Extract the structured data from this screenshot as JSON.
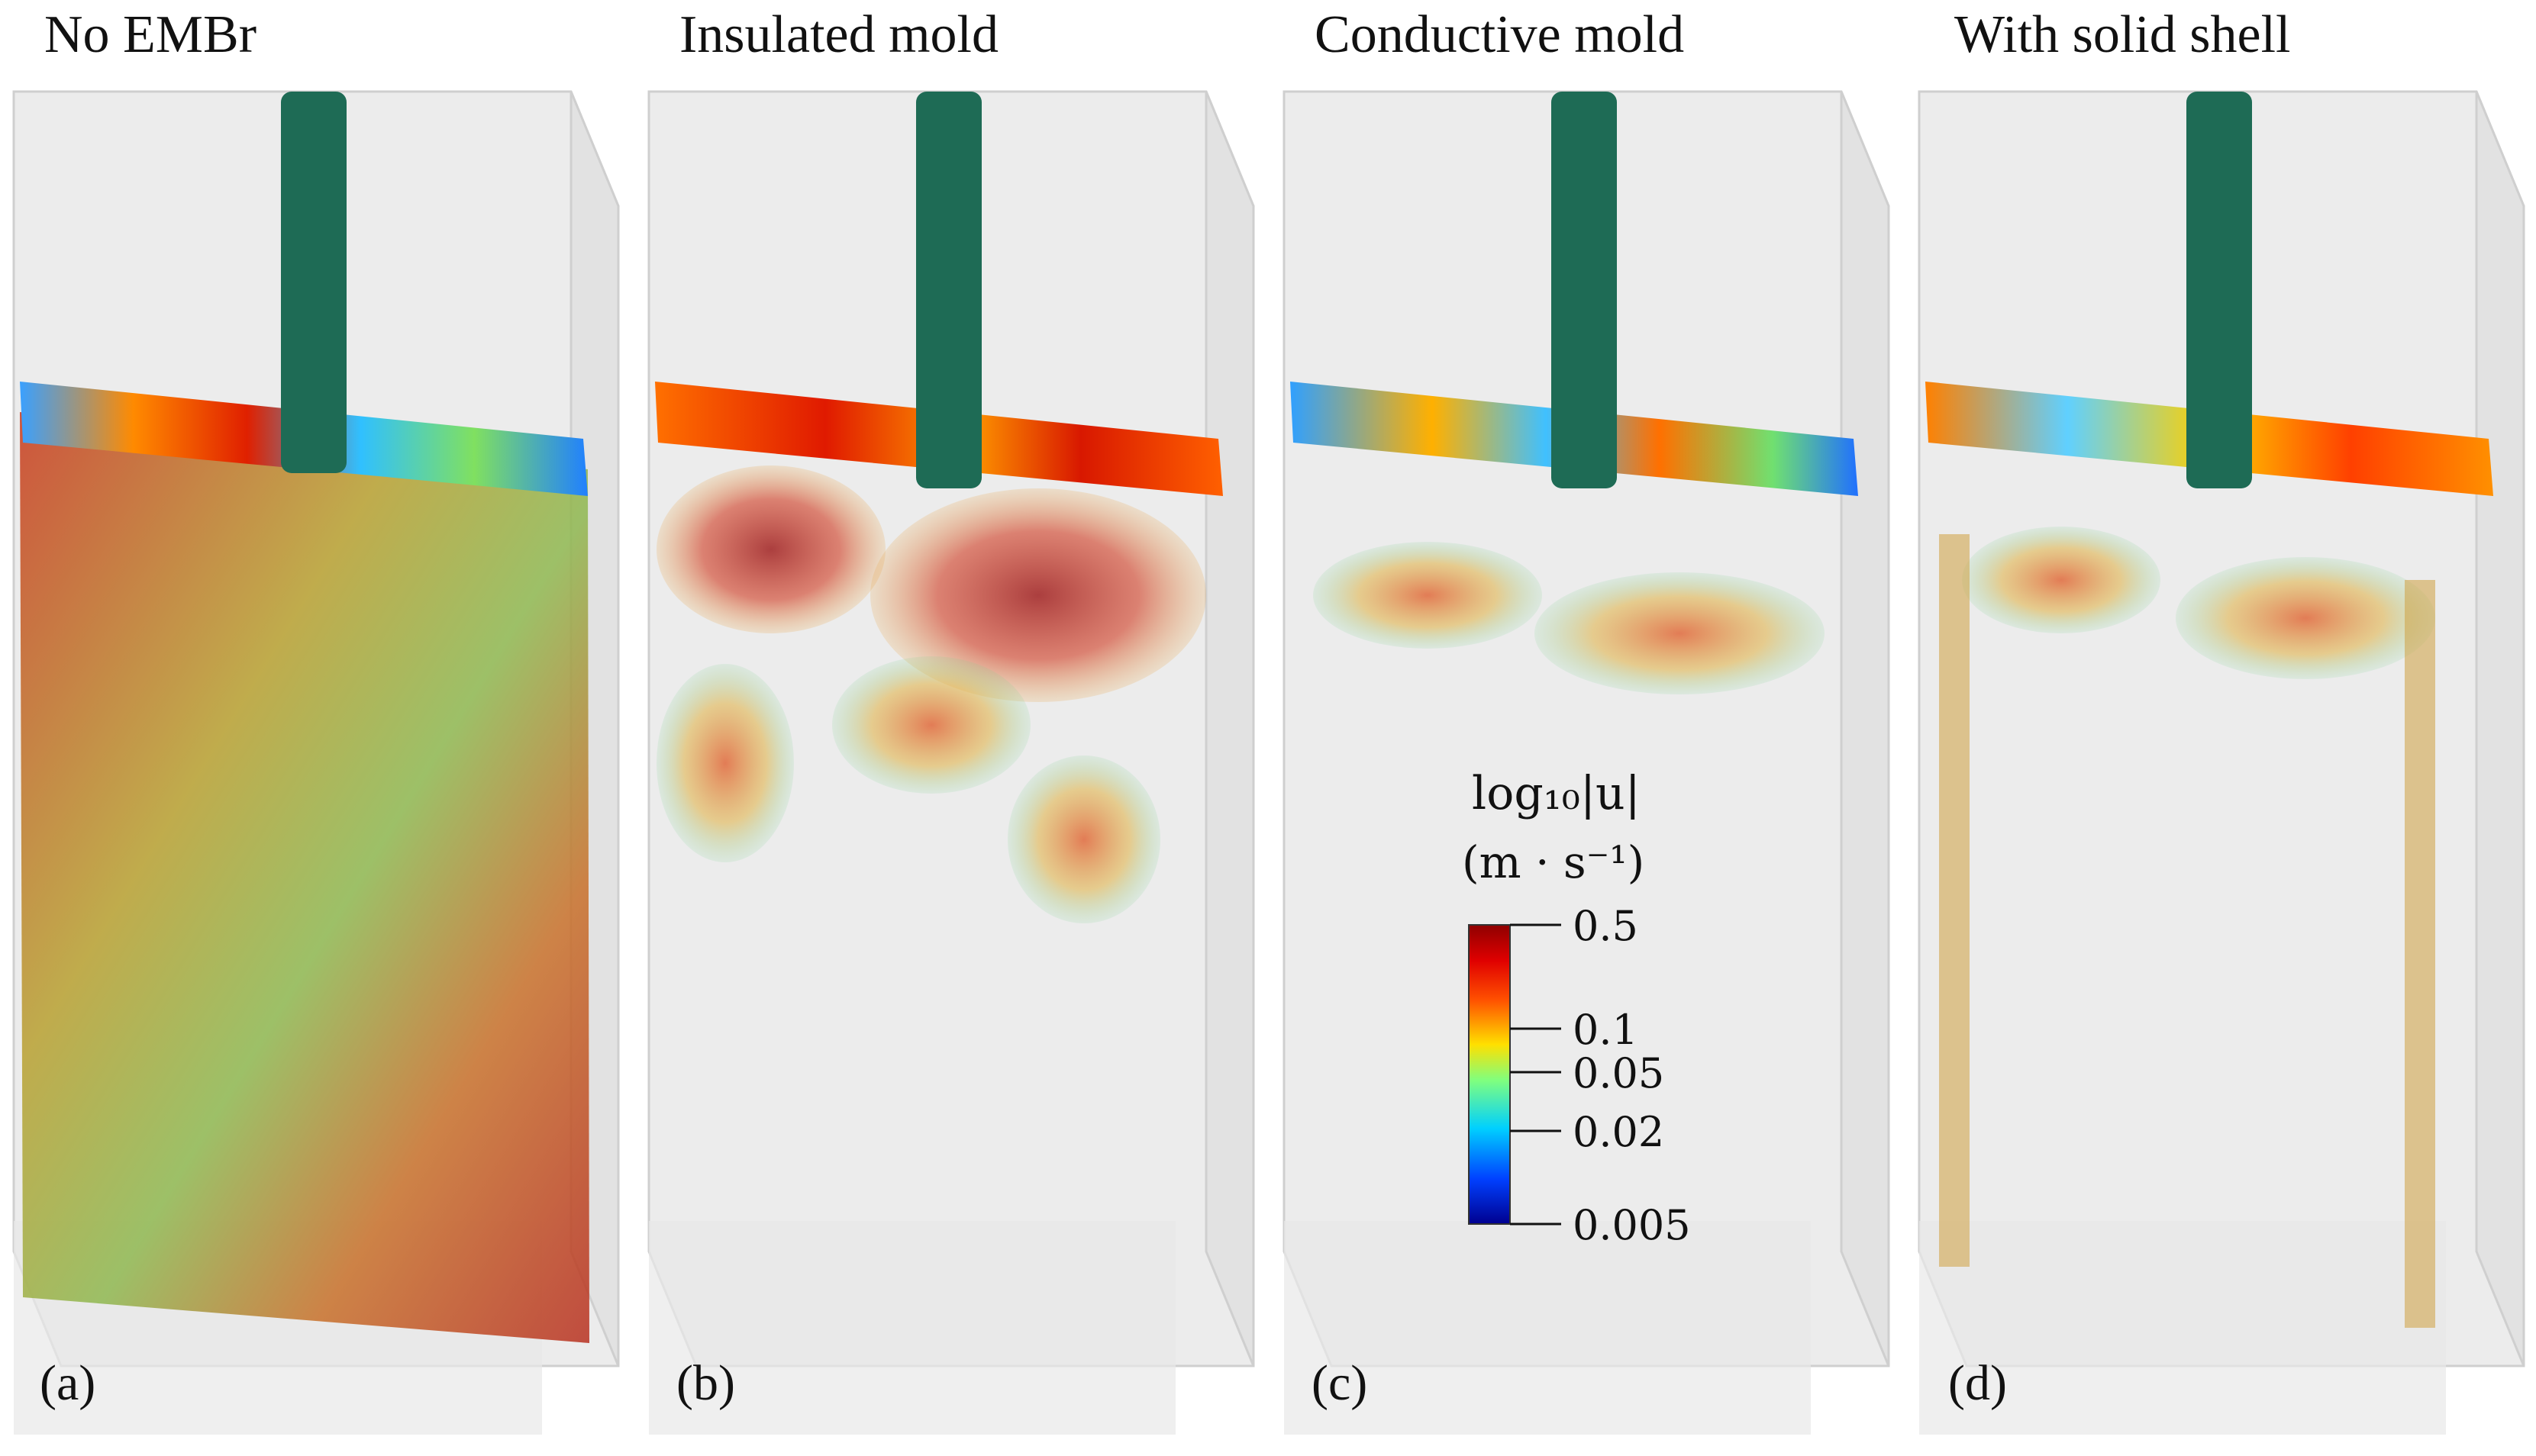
{
  "figure": {
    "panels": [
      {
        "title": "No EMBr",
        "label": "(a)"
      },
      {
        "title": "Insulated mold",
        "label": "(b)"
      },
      {
        "title": "Conductive mold",
        "label": "(c)"
      },
      {
        "title": "With solid shell",
        "label": "(d)"
      }
    ],
    "colorbar": {
      "quantity": "log₁₀|u|",
      "unit": "(m · s⁻¹)",
      "ticks": [
        "0.5",
        "0.1",
        "0.05",
        "0.02",
        "0.005"
      ],
      "range": [
        0.005,
        0.5
      ],
      "scale": "log",
      "colormap": [
        "#00008f",
        "#0050ff",
        "#00d0ff",
        "#7fff7f",
        "#ffd000",
        "#ff3000",
        "#8f0000"
      ]
    },
    "colors": {
      "nozzle": "#1e6b55",
      "mold": "#e9e9e9",
      "mold_edge": "#c9c9c9"
    }
  }
}
